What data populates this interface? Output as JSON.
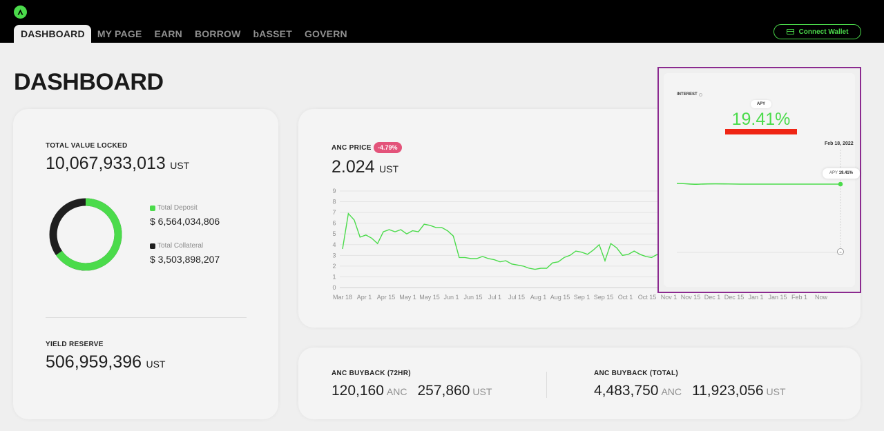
{
  "header": {
    "tabs": [
      "DASHBOARD",
      "MY PAGE",
      "EARN",
      "BORROW",
      "bASSET",
      "GOVERN"
    ],
    "active_tab": "DASHBOARD",
    "connect_wallet": "Connect Wallet"
  },
  "page_title": "DASHBOARD",
  "tvl": {
    "label": "TOTAL VALUE LOCKED",
    "value": "10,067,933,013",
    "unit": "UST",
    "deposit_label": "Total Deposit",
    "deposit_value": "$ 6,564,034,806",
    "collateral_label": "Total Collateral",
    "collateral_value": "$ 3,503,898,207",
    "colors": {
      "deposit": "#4bdb4b",
      "collateral": "#1f1f1f"
    }
  },
  "yield_reserve": {
    "label": "YIELD RESERVE",
    "value": "506,959,396",
    "unit": "UST"
  },
  "anc_price": {
    "label": "ANC PRICE",
    "change": "-4.79%",
    "value": "2.024",
    "unit": "UST"
  },
  "chart_data": {
    "type": "line",
    "y_ticks": [
      "0",
      "1",
      "2",
      "3",
      "4",
      "5",
      "6",
      "7",
      "8",
      "9"
    ],
    "ylim": [
      0,
      9
    ],
    "x_ticks": [
      "Mar 18",
      "Apr 1",
      "Apr 15",
      "May 1",
      "May 15",
      "Jun 1",
      "Jun 15",
      "Jul 1",
      "Jul 15",
      "Aug 1",
      "Aug 15",
      "Sep 1",
      "Sep 15",
      "Oct 1",
      "Oct 15",
      "Nov 1",
      "Nov 15",
      "Dec 1",
      "Dec 15",
      "Jan 1",
      "Jan 15",
      "Feb 1",
      "Now"
    ],
    "series": [
      {
        "values": [
          3.6,
          6.9,
          6.3,
          4.7,
          4.9,
          4.6,
          4.1,
          5.2,
          5.4,
          5.2,
          5.4,
          5.0,
          5.3,
          5.2,
          5.9,
          5.8,
          5.6,
          5.6,
          5.3,
          4.8,
          2.8,
          2.8,
          2.7,
          2.7,
          2.9,
          2.7,
          2.6,
          2.4,
          2.5,
          2.2,
          2.1,
          2.0,
          1.8,
          1.7,
          1.8,
          1.8,
          2.3,
          2.4,
          2.8,
          3.0,
          3.4,
          3.3,
          3.1,
          3.5,
          4.0,
          2.5,
          4.1,
          3.7,
          3.0,
          3.1,
          3.4,
          3.1,
          2.9,
          2.8,
          3.1
        ]
      }
    ],
    "color": "#4bdb4b",
    "grid": true
  },
  "interest_overlay": {
    "label": "INTEREST",
    "pill": "APY",
    "apy": "19.41%",
    "date": "Feb 18, 2022",
    "tooltip_label": "APY",
    "tooltip_value": "19.41%"
  },
  "buyback": {
    "h72_label": "ANC BUYBACK (72HR)",
    "h72_anc": "120,160",
    "h72_anc_unit": "ANC",
    "h72_ust": "257,860",
    "h72_ust_unit": "UST",
    "total_label": "ANC BUYBACK (TOTAL)",
    "total_anc": "4,483,750",
    "total_anc_unit": "ANC",
    "total_ust": "11,923,056",
    "total_ust_unit": "UST"
  }
}
